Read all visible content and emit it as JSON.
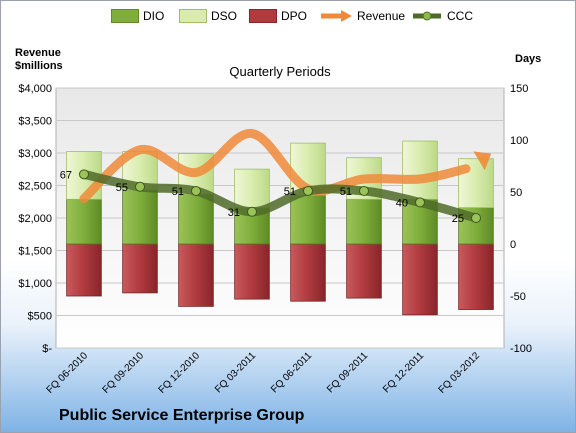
{
  "chart_data": {
    "type": "bar",
    "title": "Quarterly Periods",
    "company": "Public Service Enterprise Group",
    "left_axis_label": "Revenue\n$millions",
    "right_axis_label": "Days",
    "left_ylim": [
      0,
      4000
    ],
    "left_ticks": [
      "$-",
      "$500",
      "$1,000",
      "$1,500",
      "$2,000",
      "$2,500",
      "$3,000",
      "$3,500",
      "$4,000"
    ],
    "right_ylim": [
      -100,
      150
    ],
    "right_ticks": [
      "-100",
      "-50",
      "0",
      "50",
      "100",
      "150"
    ],
    "categories": [
      "FQ 06-2010",
      "FQ 09-2010",
      "FQ 12-2010",
      "FQ 03-2011",
      "FQ 06-2011",
      "FQ 09-2011",
      "FQ 12-2011",
      "FQ 03-2012"
    ],
    "grid": true,
    "legend_position": "top",
    "series": [
      {
        "name": "DIO",
        "axis": "right",
        "kind": "bar",
        "color": "#7fae3c",
        "values": [
          43,
          52,
          48,
          35,
          47,
          43,
          43,
          35
        ]
      },
      {
        "name": "DSO",
        "axis": "right",
        "kind": "bar",
        "color": "#d9ecae",
        "values": [
          46,
          37,
          39,
          37,
          50,
          40,
          56,
          47
        ]
      },
      {
        "name": "DPO",
        "axis": "right",
        "kind": "bar",
        "color": "#b03a3e",
        "values": [
          -50,
          -47,
          -60,
          -53,
          -55,
          -52,
          -68,
          -63
        ]
      },
      {
        "name": "Revenue",
        "axis": "left",
        "kind": "line",
        "color": "#f08a3a",
        "values": [
          2300,
          3050,
          2700,
          3300,
          2450,
          2600,
          2600,
          2850
        ]
      },
      {
        "name": "CCC",
        "axis": "right",
        "kind": "line",
        "color": "#4f6b28",
        "values": [
          67,
          55,
          51,
          31,
          51,
          51,
          40,
          25
        ]
      }
    ],
    "ccc_labels": [
      "67",
      "55",
      "51",
      "31",
      "51",
      "51",
      "40",
      "25"
    ]
  }
}
